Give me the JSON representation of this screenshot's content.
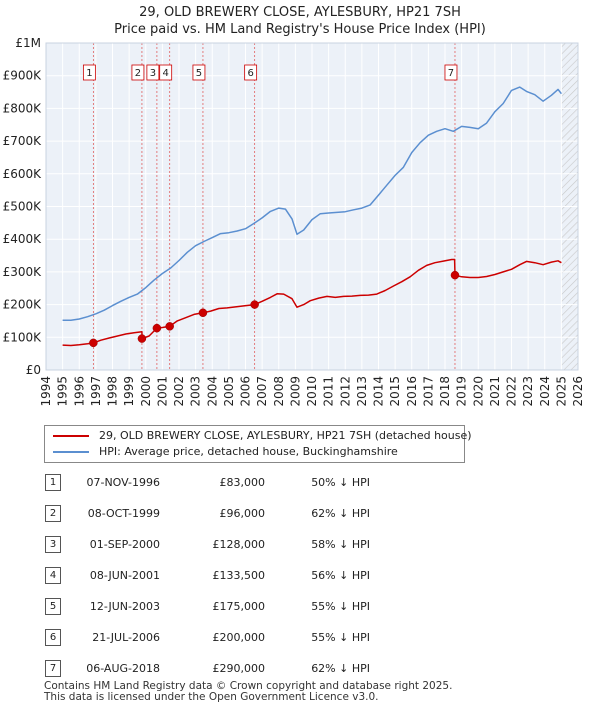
{
  "chart_data": {
    "type": "line",
    "title": "29, OLD BREWERY CLOSE, AYLESBURY, HP21 7SH",
    "subtitle": "Price paid vs. HM Land Registry's House Price Index (HPI)",
    "xlim": [
      1994,
      2026
    ],
    "ylim": [
      0,
      1000000
    ],
    "x_ticks": [
      1994,
      1995,
      1996,
      1997,
      1998,
      1999,
      2000,
      2001,
      2002,
      2003,
      2004,
      2005,
      2006,
      2007,
      2008,
      2009,
      2010,
      2011,
      2012,
      2013,
      2014,
      2015,
      2016,
      2017,
      2018,
      2019,
      2020,
      2021,
      2022,
      2023,
      2024,
      2025,
      2026
    ],
    "y_ticks": [
      {
        "value": 0,
        "label": "£0"
      },
      {
        "value": 100000,
        "label": "£100K"
      },
      {
        "value": 200000,
        "label": "£200K"
      },
      {
        "value": 300000,
        "label": "£300K"
      },
      {
        "value": 400000,
        "label": "£400K"
      },
      {
        "value": 500000,
        "label": "£500K"
      },
      {
        "value": 600000,
        "label": "£600K"
      },
      {
        "value": 700000,
        "label": "£700K"
      },
      {
        "value": 800000,
        "label": "£800K"
      },
      {
        "value": 900000,
        "label": "£900K"
      },
      {
        "value": 1000000,
        "label": "£1M"
      }
    ],
    "grid": true,
    "hatched_after": 2025.0,
    "series": [
      {
        "name": "29, OLD BREWERY CLOSE, AYLESBURY, HP21 7SH (detached house)",
        "color": "#cc0000",
        "points": [
          [
            1995.0,
            76000
          ],
          [
            1995.5,
            75000
          ],
          [
            1996.0,
            77000
          ],
          [
            1996.5,
            80000
          ],
          [
            1996.85,
            83000
          ],
          [
            1997.3,
            91000
          ],
          [
            1997.8,
            98000
          ],
          [
            1998.3,
            104000
          ],
          [
            1998.8,
            110000
          ],
          [
            1999.3,
            114000
          ],
          [
            1999.77,
            117000
          ],
          [
            1999.78,
            96000
          ],
          [
            2000.2,
            104000
          ],
          [
            2000.67,
            128000
          ],
          [
            2001.0,
            130000
          ],
          [
            2001.44,
            133500
          ],
          [
            2001.9,
            150000
          ],
          [
            2002.4,
            160000
          ],
          [
            2002.9,
            170000
          ],
          [
            2003.44,
            175000
          ],
          [
            2003.9,
            180000
          ],
          [
            2004.4,
            188000
          ],
          [
            2004.9,
            190000
          ],
          [
            2005.4,
            193000
          ],
          [
            2005.9,
            196000
          ],
          [
            2006.55,
            200000
          ],
          [
            2007.0,
            210000
          ],
          [
            2007.5,
            222000
          ],
          [
            2007.9,
            233000
          ],
          [
            2008.3,
            232000
          ],
          [
            2008.8,
            218000
          ],
          [
            2009.1,
            192000
          ],
          [
            2009.5,
            200000
          ],
          [
            2009.9,
            212000
          ],
          [
            2010.4,
            220000
          ],
          [
            2010.9,
            225000
          ],
          [
            2011.4,
            222000
          ],
          [
            2011.9,
            225000
          ],
          [
            2012.4,
            226000
          ],
          [
            2012.9,
            228000
          ],
          [
            2013.4,
            229000
          ],
          [
            2013.9,
            232000
          ],
          [
            2014.4,
            243000
          ],
          [
            2014.9,
            257000
          ],
          [
            2015.4,
            270000
          ],
          [
            2015.9,
            285000
          ],
          [
            2016.4,
            305000
          ],
          [
            2016.9,
            320000
          ],
          [
            2017.4,
            328000
          ],
          [
            2017.9,
            333000
          ],
          [
            2018.4,
            338000
          ],
          [
            2018.58,
            338000
          ],
          [
            2018.6,
            290000
          ],
          [
            2019.0,
            285000
          ],
          [
            2019.5,
            283000
          ],
          [
            2020.0,
            283000
          ],
          [
            2020.5,
            286000
          ],
          [
            2021.0,
            292000
          ],
          [
            2021.5,
            300000
          ],
          [
            2022.0,
            308000
          ],
          [
            2022.5,
            322000
          ],
          [
            2022.9,
            332000
          ],
          [
            2023.4,
            328000
          ],
          [
            2023.9,
            322000
          ],
          [
            2024.4,
            330000
          ],
          [
            2024.8,
            334000
          ],
          [
            2025.0,
            328000
          ]
        ]
      },
      {
        "name": "HPI: Average price, detached house, Buckinghamshire",
        "color": "#5b8fd0",
        "points": [
          [
            1995.0,
            152000
          ],
          [
            1995.5,
            152000
          ],
          [
            1996.0,
            156000
          ],
          [
            1996.5,
            163000
          ],
          [
            1997.0,
            172000
          ],
          [
            1997.5,
            183000
          ],
          [
            1998.0,
            197000
          ],
          [
            1998.5,
            210000
          ],
          [
            1999.0,
            222000
          ],
          [
            1999.5,
            232000
          ],
          [
            2000.0,
            252000
          ],
          [
            2000.5,
            275000
          ],
          [
            2001.0,
            295000
          ],
          [
            2001.5,
            312000
          ],
          [
            2002.0,
            335000
          ],
          [
            2002.5,
            360000
          ],
          [
            2003.0,
            380000
          ],
          [
            2003.5,
            393000
          ],
          [
            2004.0,
            405000
          ],
          [
            2004.5,
            417000
          ],
          [
            2005.0,
            420000
          ],
          [
            2005.5,
            425000
          ],
          [
            2006.0,
            432000
          ],
          [
            2006.5,
            448000
          ],
          [
            2007.0,
            465000
          ],
          [
            2007.5,
            485000
          ],
          [
            2008.0,
            495000
          ],
          [
            2008.4,
            492000
          ],
          [
            2008.8,
            462000
          ],
          [
            2009.1,
            415000
          ],
          [
            2009.5,
            428000
          ],
          [
            2010.0,
            460000
          ],
          [
            2010.5,
            478000
          ],
          [
            2011.0,
            480000
          ],
          [
            2011.5,
            482000
          ],
          [
            2012.0,
            484000
          ],
          [
            2012.5,
            490000
          ],
          [
            2013.0,
            495000
          ],
          [
            2013.5,
            505000
          ],
          [
            2014.0,
            535000
          ],
          [
            2014.5,
            565000
          ],
          [
            2015.0,
            595000
          ],
          [
            2015.5,
            620000
          ],
          [
            2016.0,
            665000
          ],
          [
            2016.5,
            695000
          ],
          [
            2017.0,
            718000
          ],
          [
            2017.5,
            730000
          ],
          [
            2018.0,
            738000
          ],
          [
            2018.5,
            730000
          ],
          [
            2019.0,
            745000
          ],
          [
            2019.5,
            742000
          ],
          [
            2020.0,
            738000
          ],
          [
            2020.5,
            755000
          ],
          [
            2021.0,
            790000
          ],
          [
            2021.5,
            815000
          ],
          [
            2022.0,
            855000
          ],
          [
            2022.5,
            865000
          ],
          [
            2022.9,
            852000
          ],
          [
            2023.4,
            842000
          ],
          [
            2023.9,
            822000
          ],
          [
            2024.4,
            840000
          ],
          [
            2024.8,
            858000
          ],
          [
            2025.0,
            845000
          ]
        ]
      }
    ],
    "sales": [
      {
        "n": "1",
        "x": 1996.85,
        "price": 83000
      },
      {
        "n": "2",
        "x": 1999.77,
        "price": 96000
      },
      {
        "n": "3",
        "x": 2000.67,
        "price": 128000
      },
      {
        "n": "4",
        "x": 2001.44,
        "price": 133500
      },
      {
        "n": "5",
        "x": 2003.44,
        "price": 175000
      },
      {
        "n": "6",
        "x": 2006.55,
        "price": 200000
      },
      {
        "n": "7",
        "x": 2018.6,
        "price": 290000
      }
    ]
  },
  "legend": {
    "items": [
      {
        "label": "29, OLD BREWERY CLOSE, AYLESBURY, HP21 7SH (detached house)",
        "color": "#cc0000"
      },
      {
        "label": "HPI: Average price, detached house, Buckinghamshire",
        "color": "#5b8fd0"
      }
    ]
  },
  "sales_table": [
    {
      "n": "1",
      "date": "07-NOV-1996",
      "price": "£83,000",
      "hpi": "50% ↓ HPI"
    },
    {
      "n": "2",
      "date": "08-OCT-1999",
      "price": "£96,000",
      "hpi": "62% ↓ HPI"
    },
    {
      "n": "3",
      "date": "01-SEP-2000",
      "price": "£128,000",
      "hpi": "58% ↓ HPI"
    },
    {
      "n": "4",
      "date": "08-JUN-2001",
      "price": "£133,500",
      "hpi": "56% ↓ HPI"
    },
    {
      "n": "5",
      "date": "12-JUN-2003",
      "price": "£175,000",
      "hpi": "55% ↓ HPI"
    },
    {
      "n": "6",
      "date": "21-JUL-2006",
      "price": "£200,000",
      "hpi": "55% ↓ HPI"
    },
    {
      "n": "7",
      "date": "06-AUG-2018",
      "price": "£290,000",
      "hpi": "62% ↓ HPI"
    }
  ],
  "footer": {
    "line1": "Contains HM Land Registry data © Crown copyright and database right 2025.",
    "line2": "This data is licensed under the Open Government Licence v3.0."
  }
}
